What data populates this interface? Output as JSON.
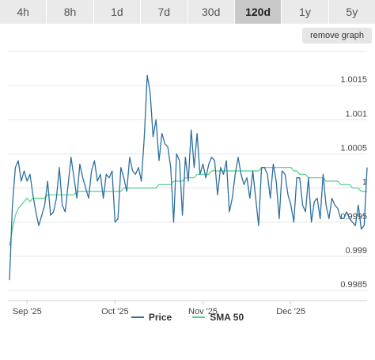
{
  "tabs": [
    {
      "label": "4h",
      "active": false
    },
    {
      "label": "8h",
      "active": false
    },
    {
      "label": "1d",
      "active": false
    },
    {
      "label": "7d",
      "active": false
    },
    {
      "label": "30d",
      "active": false
    },
    {
      "label": "120d",
      "active": true
    },
    {
      "label": "1y",
      "active": false
    },
    {
      "label": "5y",
      "active": false
    }
  ],
  "remove_graph_label": "remove graph",
  "colors": {
    "price": "#2c6fa0",
    "sma": "#4fd08a",
    "grid": "#e6e6e6"
  },
  "chart_data": {
    "type": "line",
    "x_ticks": [
      "Sep '25",
      "Oct '25",
      "Nov '25",
      "Dec '25"
    ],
    "x_tick_index": [
      6,
      36,
      66,
      96
    ],
    "y_ticks": [
      "1.0015",
      "1.001",
      "1.0005",
      "1",
      "0.9995",
      "0.999",
      "0.9985"
    ],
    "y_tick_values": [
      1.0015,
      1.001,
      1.0005,
      1.0,
      0.9995,
      0.999,
      0.9985
    ],
    "ylim": [
      0.99835,
      1.002
    ],
    "grid": true,
    "legend_position": "bottom",
    "series": [
      {
        "name": "Price",
        "values": [
          0.99865,
          0.99975,
          1.0003,
          1.0004,
          1.0001,
          1.00025,
          1.0001,
          1.0002,
          0.9999,
          0.99965,
          0.99945,
          0.9996,
          0.99975,
          1.0001,
          0.9996,
          0.99965,
          0.99985,
          1.0003,
          0.99975,
          0.99965,
          1.00005,
          1.00045,
          1.00015,
          0.99985,
          1.00035,
          1.00015,
          1.0,
          0.99985,
          1.00025,
          1.0004,
          1.0001,
          1.0002,
          0.99985,
          1.0002,
          1.00015,
          1.00025,
          0.9995,
          0.99955,
          1.0003,
          1.00015,
          0.99995,
          1.00045,
          1.00025,
          1.0002,
          1.0003,
          1.0001,
          1.00075,
          1.00165,
          1.0014,
          1.00075,
          1.001,
          1.0004,
          1.0008,
          1.00065,
          1.0006,
          1.0003,
          0.9995,
          1.0005,
          1.0004,
          0.9996,
          1.00045,
          1.0001,
          1.00085,
          1.0003,
          1.0008,
          1.0002,
          1.00035,
          1.00015,
          1.00035,
          1.00045,
          1.0004,
          0.9999,
          1.0003,
          1.0002,
          1.0004,
          0.99965,
          0.99985,
          1.0002,
          1.00045,
          1.0002,
          1.00005,
          1.00015,
          0.99985,
          1.00025,
          0.99985,
          0.99945,
          1.0003,
          1.0003,
          1.0002,
          0.99985,
          1.00035,
          1.0001,
          0.99955,
          1.00025,
          1.0002,
          0.9999,
          0.99975,
          0.9995,
          1.00015,
          1.00015,
          0.99975,
          0.99965,
          1.00015,
          0.9995,
          0.9998,
          0.99985,
          0.99955,
          1.0002,
          0.99975,
          0.99955,
          0.99985,
          0.99975,
          0.9997,
          0.99955,
          0.99955,
          0.99965,
          0.99955,
          0.9995,
          0.99945,
          0.99975,
          0.9994,
          0.99945,
          1.0003
        ]
      },
      {
        "name": "SMA 50",
        "values": [
          0.99915,
          0.9994,
          0.9996,
          0.9997,
          0.99975,
          0.9998,
          0.99985,
          0.9998,
          0.99985,
          0.99985,
          0.99985,
          0.99985,
          0.99985,
          0.9999,
          0.9999,
          0.9999,
          0.9999,
          0.9999,
          0.9999,
          0.9999,
          0.9999,
          0.9999,
          0.9999,
          0.99995,
          0.99995,
          0.99995,
          0.99995,
          0.99995,
          0.99995,
          0.99995,
          0.99995,
          0.99995,
          0.99995,
          0.99995,
          0.99995,
          0.99995,
          0.99995,
          0.99995,
          0.99995,
          1.0,
          1.0,
          1.0,
          1.0,
          1.0,
          1.0,
          1.0,
          1.0,
          1.0,
          1.0,
          1.0,
          1.0,
          1.00005,
          1.00005,
          1.00005,
          1.00005,
          1.00005,
          1.0001,
          1.0001,
          1.0001,
          1.0001,
          1.00015,
          1.00015,
          1.00015,
          1.00015,
          1.0002,
          1.0002,
          1.0002,
          1.0002,
          1.0002,
          1.00025,
          1.00025,
          1.00025,
          1.00025,
          1.00025,
          1.00025,
          1.00025,
          1.00025,
          1.00025,
          1.00025,
          1.00025,
          1.00025,
          1.00025,
          1.00025,
          1.00025,
          1.00025,
          1.00025,
          1.0003,
          1.0003,
          1.0003,
          1.0003,
          1.0003,
          1.0003,
          1.0003,
          1.0003,
          1.0003,
          1.0003,
          1.0003,
          1.00025,
          1.00025,
          1.0002,
          1.0002,
          1.0002,
          1.00015,
          1.00015,
          1.00015,
          1.00015,
          1.00015,
          1.00015,
          1.0001,
          1.0001,
          1.0001,
          1.0001,
          1.0001,
          1.00005,
          1.00005,
          1.00005,
          1.00005,
          1.0,
          1.0,
          1.0,
          0.99995,
          0.99995,
          0.99995
        ]
      }
    ]
  }
}
